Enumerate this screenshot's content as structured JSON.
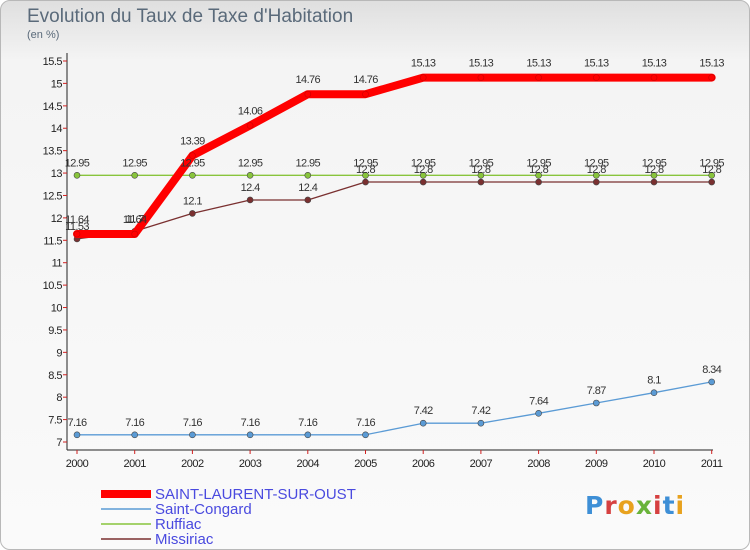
{
  "title": "Evolution du Taux de Taxe d'Habitation",
  "subtitle": "(en %)",
  "logo_text": "Proxiti",
  "chart_data": {
    "type": "line",
    "title": "Evolution du Taux de Taxe d'Habitation",
    "ylabel": "(en %)",
    "categories": [
      "2000",
      "2001",
      "2002",
      "2003",
      "2004",
      "2005",
      "2006",
      "2007",
      "2008",
      "2009",
      "2010",
      "2011"
    ],
    "ylim": [
      7,
      15.5
    ],
    "yticks": [
      "7",
      "7.5",
      "8",
      "8.5",
      "9",
      "9.5",
      "10",
      "10.5",
      "11",
      "11.5",
      "12",
      "12.5",
      "13",
      "13.5",
      "14",
      "14.5",
      "15",
      "15.5"
    ],
    "grid": false,
    "legend_position": "bottom-left",
    "series": [
      {
        "name": "SAINT-LAURENT-SUR-OUST",
        "color": "#ff0000",
        "values": [
          11.64,
          11.64,
          13.39,
          14.06,
          14.76,
          14.76,
          15.13,
          15.13,
          15.13,
          15.13,
          15.13,
          15.13
        ],
        "labels": [
          "11.64",
          "11.64",
          "13.39",
          "14.06",
          "14.76",
          "14.76",
          "15.13",
          "15.13",
          "15.13",
          "15.13",
          "15.13",
          "15.13"
        ]
      },
      {
        "name": "Saint-Congard",
        "color": "#5b9bd5",
        "values": [
          7.16,
          7.16,
          7.16,
          7.16,
          7.16,
          7.16,
          7.42,
          7.42,
          7.64,
          7.87,
          8.1,
          8.34
        ],
        "labels": [
          "7.16",
          "7.16",
          "7.16",
          "7.16",
          "7.16",
          "7.16",
          "7.42",
          "7.42",
          "7.64",
          "7.87",
          "8.1",
          "8.34"
        ]
      },
      {
        "name": "Ruffiac",
        "color": "#88c43c",
        "values": [
          12.95,
          12.95,
          12.95,
          12.95,
          12.95,
          12.95,
          12.95,
          12.95,
          12.95,
          12.95,
          12.95,
          12.95
        ],
        "labels": [
          "12.95",
          "12.95",
          "12.95",
          "12.95",
          "12.95",
          "12.95",
          "12.95",
          "12.95",
          "12.95",
          "12.95",
          "12.95",
          "12.95"
        ]
      },
      {
        "name": "Missiriac",
        "color": "#7a3030",
        "values": [
          11.53,
          11.7,
          12.1,
          12.4,
          12.4,
          12.8,
          12.8,
          12.8,
          12.8,
          12.8,
          12.8,
          12.8
        ],
        "labels": [
          "11.53",
          "11.7",
          "12.1",
          "12.4",
          "12.4",
          "12.8",
          "12.8",
          "12.8",
          "12.8",
          "12.8",
          "12.8",
          "12.8"
        ]
      }
    ]
  }
}
